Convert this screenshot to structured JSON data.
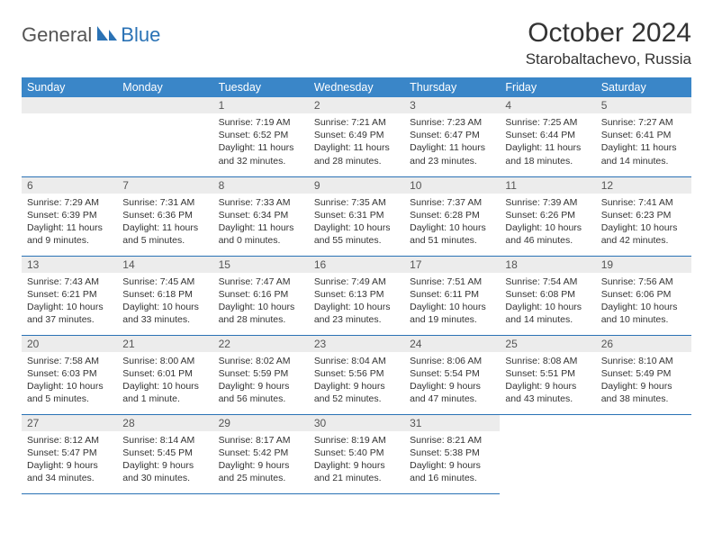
{
  "logo": {
    "general": "General",
    "blue": "Blue"
  },
  "title": "October 2024",
  "subtitle": "Starobaltachevo, Russia",
  "colors": {
    "header_bg": "#3a86c8",
    "header_fg": "#ffffff",
    "rule": "#2a72b5",
    "daynum_bg": "#ececec",
    "text": "#333333"
  },
  "weekdays": [
    "Sunday",
    "Monday",
    "Tuesday",
    "Wednesday",
    "Thursday",
    "Friday",
    "Saturday"
  ],
  "weeks": [
    [
      null,
      null,
      {
        "n": "1",
        "sr": "7:19 AM",
        "ss": "6:52 PM",
        "dl": "11 hours and 32 minutes."
      },
      {
        "n": "2",
        "sr": "7:21 AM",
        "ss": "6:49 PM",
        "dl": "11 hours and 28 minutes."
      },
      {
        "n": "3",
        "sr": "7:23 AM",
        "ss": "6:47 PM",
        "dl": "11 hours and 23 minutes."
      },
      {
        "n": "4",
        "sr": "7:25 AM",
        "ss": "6:44 PM",
        "dl": "11 hours and 18 minutes."
      },
      {
        "n": "5",
        "sr": "7:27 AM",
        "ss": "6:41 PM",
        "dl": "11 hours and 14 minutes."
      }
    ],
    [
      {
        "n": "6",
        "sr": "7:29 AM",
        "ss": "6:39 PM",
        "dl": "11 hours and 9 minutes."
      },
      {
        "n": "7",
        "sr": "7:31 AM",
        "ss": "6:36 PM",
        "dl": "11 hours and 5 minutes."
      },
      {
        "n": "8",
        "sr": "7:33 AM",
        "ss": "6:34 PM",
        "dl": "11 hours and 0 minutes."
      },
      {
        "n": "9",
        "sr": "7:35 AM",
        "ss": "6:31 PM",
        "dl": "10 hours and 55 minutes."
      },
      {
        "n": "10",
        "sr": "7:37 AM",
        "ss": "6:28 PM",
        "dl": "10 hours and 51 minutes."
      },
      {
        "n": "11",
        "sr": "7:39 AM",
        "ss": "6:26 PM",
        "dl": "10 hours and 46 minutes."
      },
      {
        "n": "12",
        "sr": "7:41 AM",
        "ss": "6:23 PM",
        "dl": "10 hours and 42 minutes."
      }
    ],
    [
      {
        "n": "13",
        "sr": "7:43 AM",
        "ss": "6:21 PM",
        "dl": "10 hours and 37 minutes."
      },
      {
        "n": "14",
        "sr": "7:45 AM",
        "ss": "6:18 PM",
        "dl": "10 hours and 33 minutes."
      },
      {
        "n": "15",
        "sr": "7:47 AM",
        "ss": "6:16 PM",
        "dl": "10 hours and 28 minutes."
      },
      {
        "n": "16",
        "sr": "7:49 AM",
        "ss": "6:13 PM",
        "dl": "10 hours and 23 minutes."
      },
      {
        "n": "17",
        "sr": "7:51 AM",
        "ss": "6:11 PM",
        "dl": "10 hours and 19 minutes."
      },
      {
        "n": "18",
        "sr": "7:54 AM",
        "ss": "6:08 PM",
        "dl": "10 hours and 14 minutes."
      },
      {
        "n": "19",
        "sr": "7:56 AM",
        "ss": "6:06 PM",
        "dl": "10 hours and 10 minutes."
      }
    ],
    [
      {
        "n": "20",
        "sr": "7:58 AM",
        "ss": "6:03 PM",
        "dl": "10 hours and 5 minutes."
      },
      {
        "n": "21",
        "sr": "8:00 AM",
        "ss": "6:01 PM",
        "dl": "10 hours and 1 minute."
      },
      {
        "n": "22",
        "sr": "8:02 AM",
        "ss": "5:59 PM",
        "dl": "9 hours and 56 minutes."
      },
      {
        "n": "23",
        "sr": "8:04 AM",
        "ss": "5:56 PM",
        "dl": "9 hours and 52 minutes."
      },
      {
        "n": "24",
        "sr": "8:06 AM",
        "ss": "5:54 PM",
        "dl": "9 hours and 47 minutes."
      },
      {
        "n": "25",
        "sr": "8:08 AM",
        "ss": "5:51 PM",
        "dl": "9 hours and 43 minutes."
      },
      {
        "n": "26",
        "sr": "8:10 AM",
        "ss": "5:49 PM",
        "dl": "9 hours and 38 minutes."
      }
    ],
    [
      {
        "n": "27",
        "sr": "8:12 AM",
        "ss": "5:47 PM",
        "dl": "9 hours and 34 minutes."
      },
      {
        "n": "28",
        "sr": "8:14 AM",
        "ss": "5:45 PM",
        "dl": "9 hours and 30 minutes."
      },
      {
        "n": "29",
        "sr": "8:17 AM",
        "ss": "5:42 PM",
        "dl": "9 hours and 25 minutes."
      },
      {
        "n": "30",
        "sr": "8:19 AM",
        "ss": "5:40 PM",
        "dl": "9 hours and 21 minutes."
      },
      {
        "n": "31",
        "sr": "8:21 AM",
        "ss": "5:38 PM",
        "dl": "9 hours and 16 minutes."
      },
      null,
      null
    ]
  ]
}
